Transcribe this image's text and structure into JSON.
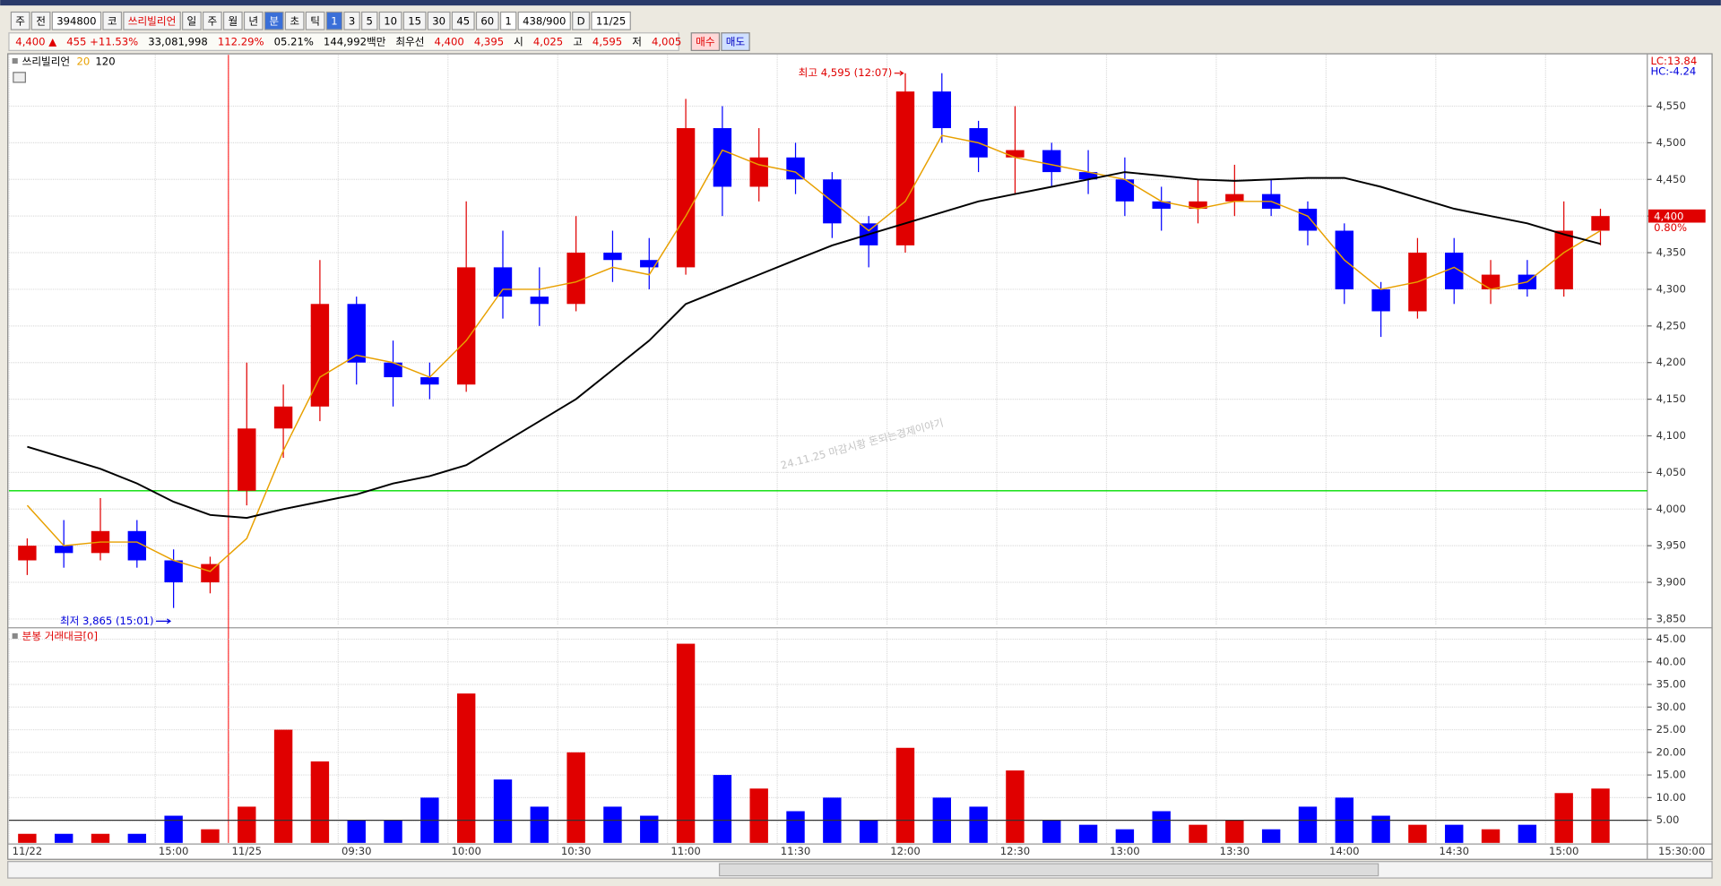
{
  "toolbar": {
    "items": [
      {
        "text": "주"
      },
      {
        "text": "전"
      },
      {
        "text": "394800",
        "kind": "input"
      },
      {
        "text": "코"
      },
      {
        "text": "쓰리빌리언",
        "color": "#e00000"
      },
      {
        "text": "일"
      },
      {
        "text": "주"
      },
      {
        "text": "월"
      },
      {
        "text": "년"
      },
      {
        "text": "분",
        "active": true
      },
      {
        "text": "초"
      },
      {
        "text": "틱"
      },
      {
        "text": "1",
        "active": true
      },
      {
        "text": "3"
      },
      {
        "text": "5"
      },
      {
        "text": "10"
      },
      {
        "text": "15"
      },
      {
        "text": "30"
      },
      {
        "text": "45"
      },
      {
        "text": "60"
      },
      {
        "text": "1",
        "kind": "input"
      },
      {
        "text": "438/900",
        "kind": "input"
      },
      {
        "text": "D"
      },
      {
        "text": "11/25",
        "kind": "input"
      }
    ]
  },
  "info_bar": {
    "items": [
      {
        "text": "4,400 ▲",
        "color": "#e00000"
      },
      {
        "text": "455 +11.53%",
        "color": "#e00000"
      },
      {
        "text": "33,081,998",
        "color": "#000000"
      },
      {
        "text": "112.29%",
        "color": "#e00000"
      },
      {
        "text": "05.21%",
        "color": "#000000"
      },
      {
        "text": "144,992백만",
        "color": "#000000"
      },
      {
        "text": "최우선",
        "color": "#000000"
      },
      {
        "text": "4,400",
        "color": "#e00000"
      },
      {
        "text": "4,395",
        "color": "#e00000"
      },
      {
        "text": "시",
        "color": "#000000"
      },
      {
        "text": "4,025",
        "color": "#e00000"
      },
      {
        "text": "고",
        "color": "#000000"
      },
      {
        "text": "4,595",
        "color": "#e00000"
      },
      {
        "text": "저",
        "color": "#000000"
      },
      {
        "text": "4,005",
        "color": "#e00000"
      }
    ],
    "buttons": [
      {
        "text": "매수",
        "color": "#e00000",
        "background": "#ffd8d8"
      },
      {
        "text": "매도",
        "color": "#0000c0",
        "background": "#d0e0ff"
      }
    ]
  },
  "chart_data": [
    {
      "type": "candlestick",
      "title": "쓰리빌리언",
      "up_color": "#e00000",
      "down_color": "#0000ff",
      "open": [
        3930,
        3950,
        3940,
        3970,
        3930,
        3900,
        4025,
        4110,
        4140,
        4280,
        4200,
        4180,
        4170,
        4330,
        4290,
        4280,
        4350,
        4340,
        4330,
        4520,
        4440,
        4480,
        4450,
        4390,
        4360,
        4570,
        4520,
        4480,
        4490,
        4460,
        4450,
        4420,
        4410,
        4420,
        4430,
        4410,
        4380,
        4300,
        4270,
        4350,
        4300,
        4320,
        4300,
        4380
      ],
      "high": [
        3960,
        3985,
        4015,
        3985,
        3945,
        3935,
        4200,
        4170,
        4340,
        4290,
        4230,
        4200,
        4420,
        4380,
        4330,
        4400,
        4380,
        4370,
        4560,
        4550,
        4520,
        4500,
        4460,
        4400,
        4595,
        4595,
        4530,
        4550,
        4500,
        4490,
        4480,
        4440,
        4450,
        4470,
        4450,
        4420,
        4390,
        4310,
        4370,
        4370,
        4340,
        4340,
        4420,
        4410
      ],
      "low": [
        3910,
        3920,
        3930,
        3920,
        3865,
        3885,
        4005,
        4070,
        4120,
        4170,
        4140,
        4150,
        4160,
        4260,
        4250,
        4270,
        4310,
        4300,
        4320,
        4400,
        4420,
        4430,
        4370,
        4330,
        4350,
        4500,
        4460,
        4430,
        4440,
        4430,
        4400,
        4380,
        4390,
        4400,
        4400,
        4360,
        4280,
        4235,
        4260,
        4280,
        4280,
        4290,
        4290,
        4360
      ],
      "close": [
        3950,
        3940,
        3970,
        3930,
        3900,
        3925,
        4110,
        4140,
        4280,
        4200,
        4180,
        4170,
        4330,
        4290,
        4280,
        4350,
        4340,
        4330,
        4520,
        4440,
        4480,
        4450,
        4390,
        4360,
        4570,
        4520,
        4480,
        4490,
        4460,
        4450,
        4420,
        4410,
        4420,
        4430,
        4410,
        4380,
        4300,
        4270,
        4350,
        4300,
        4320,
        4300,
        4380,
        4400
      ],
      "series": [
        {
          "name": "20",
          "color": "#e8a000",
          "values": [
            4005,
            3950,
            3955,
            3955,
            3930,
            3915,
            3960,
            4080,
            4180,
            4210,
            4200,
            4180,
            4230,
            4300,
            4300,
            4310,
            4330,
            4320,
            4400,
            4490,
            4470,
            4460,
            4420,
            4380,
            4420,
            4510,
            4500,
            4480,
            4470,
            4460,
            4450,
            4420,
            4410,
            4420,
            4420,
            4400,
            4340,
            4300,
            4310,
            4330,
            4300,
            4310,
            4350,
            4380
          ]
        },
        {
          "name": "120",
          "color": "#000000",
          "values": [
            4085,
            4070,
            4055,
            4035,
            4010,
            3992,
            3988,
            4000,
            4010,
            4020,
            4035,
            4045,
            4060,
            4090,
            4120,
            4150,
            4190,
            4230,
            4280,
            4300,
            4320,
            4340,
            4360,
            4375,
            4390,
            4405,
            4420,
            4430,
            4440,
            4450,
            4460,
            4455,
            4450,
            4448,
            4450,
            4452,
            4452,
            4440,
            4425,
            4410,
            4400,
            4390,
            4375,
            4362
          ]
        }
      ],
      "ylim": [
        3841,
        4620
      ],
      "yticks": [
        {
          "value": 3850,
          "label": "3,850"
        },
        {
          "value": 3900,
          "label": "3,900"
        },
        {
          "value": 3950,
          "label": "3,950"
        },
        {
          "value": 4000,
          "label": "4,000"
        },
        {
          "value": 4050,
          "label": "4,050"
        },
        {
          "value": 4100,
          "label": "4,100"
        },
        {
          "value": 4150,
          "label": "4,150"
        },
        {
          "value": 4200,
          "label": "4,200"
        },
        {
          "value": 4250,
          "label": "4,250"
        },
        {
          "value": 4300,
          "label": "4,300"
        },
        {
          "value": 4350,
          "label": "4,350"
        },
        {
          "value": 4400,
          "label": "4,400"
        },
        {
          "value": 4450,
          "label": "4,450"
        },
        {
          "value": 4500,
          "label": "4,500"
        },
        {
          "value": 4550,
          "label": "4,550"
        }
      ],
      "grid": true,
      "hline": {
        "value": 4025,
        "color": "#00dd00"
      },
      "marker_line": {
        "category_index": 6,
        "color": "#ff0000"
      },
      "annotations": [
        {
          "text": "최고 4,595 (12:07)",
          "color": "#e00000"
        },
        {
          "text": "최저 3,865 (15:01)",
          "color": "#0000dd"
        }
      ],
      "watermark": "24.11.25 마감시황 돈되는경제이야기",
      "corner_labels": [
        {
          "text": "LC:13.84",
          "color": "#e00000"
        },
        {
          "text": "HC:-4.24",
          "color": "#0000dd"
        }
      ],
      "last_price": {
        "value": 4400,
        "label": "4,400"
      },
      "change_label": "0.80%"
    },
    {
      "type": "bar",
      "title": "분봉 거래대금[0]",
      "categories": [
        "11/22",
        null,
        null,
        null,
        "15:00",
        null,
        "11/25",
        null,
        null,
        "09:30",
        null,
        null,
        "10:00",
        null,
        null,
        "10:30",
        null,
        null,
        "11:00",
        null,
        null,
        "11:30",
        null,
        null,
        "12:00",
        null,
        null,
        "12:30",
        null,
        null,
        "13:00",
        null,
        null,
        "13:30",
        null,
        null,
        "14:00",
        null,
        null,
        "14:30",
        null,
        null,
        "15:00",
        null
      ],
      "values": [
        2,
        2,
        2,
        2,
        6,
        3,
        8,
        25,
        18,
        5,
        5,
        10,
        33,
        14,
        8,
        20,
        8,
        6,
        44,
        15,
        12,
        7,
        10,
        5,
        21,
        10,
        8,
        16,
        5,
        4,
        3,
        7,
        4,
        5,
        3,
        8,
        10,
        6,
        4,
        4,
        3,
        4,
        11,
        12
      ],
      "ylim": [
        0,
        46.8
      ],
      "yticks": [
        {
          "value": 5,
          "label": "5.00"
        },
        {
          "value": 10,
          "label": "10.00"
        },
        {
          "value": 15,
          "label": "15.00"
        },
        {
          "value": 20,
          "label": "20.00"
        },
        {
          "value": 25,
          "label": "25.00"
        },
        {
          "value": 30,
          "label": "30.00"
        },
        {
          "value": 35,
          "label": "35.00"
        },
        {
          "value": 40,
          "label": "40.00"
        },
        {
          "value": 45,
          "label": "45.00"
        }
      ],
      "grid": true,
      "reference_line": 5,
      "x_end_label": "15:30:00"
    }
  ]
}
